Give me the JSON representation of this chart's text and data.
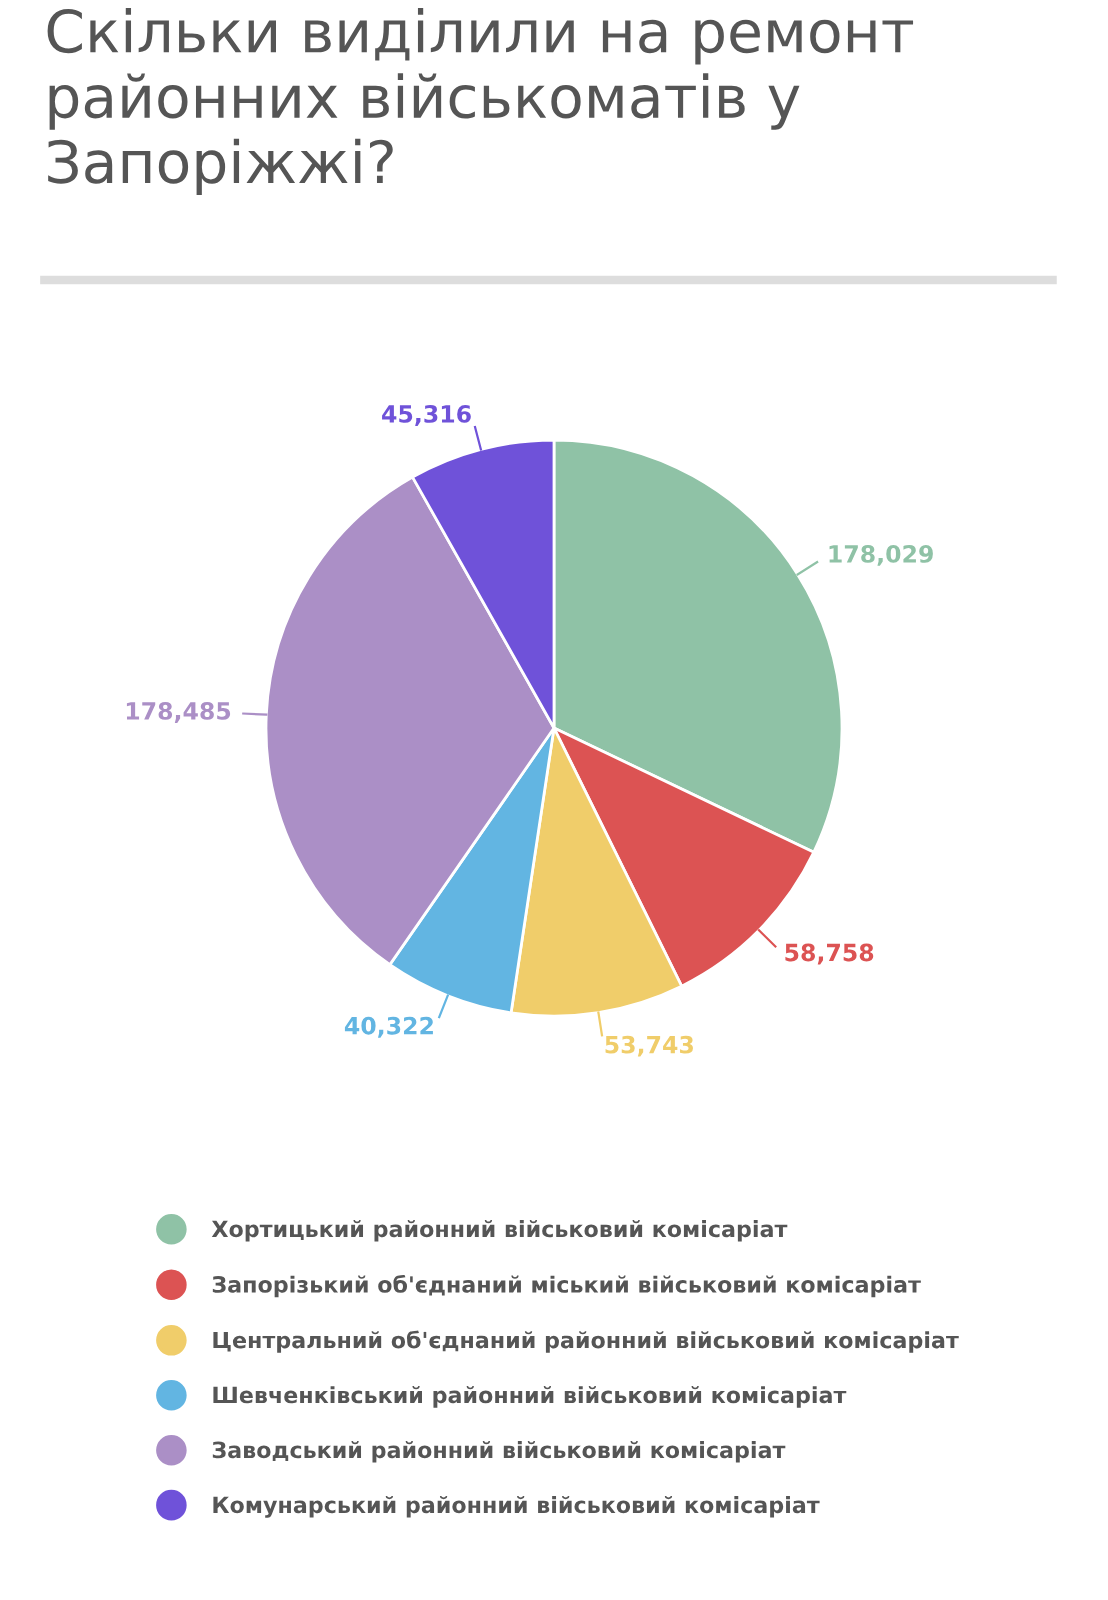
{
  "chart_data": {
    "type": "pie",
    "title": "Скільки виділили на ремонт районних військоматів у Запоріжжі?",
    "categories": [
      "Хортицький районний військовий комісаріат",
      "Запорізький об'єднаний міський військовий комісаріат",
      "Центральний об'єднаний районний військовий комісаріат",
      "Шевченківський районний військовий комісаріат",
      "Заводський районний військовий комісаріат",
      "Комунарський районний військовий комісаріат"
    ],
    "values": [
      178029,
      58758,
      53743,
      40322,
      178485,
      45316
    ],
    "value_labels": [
      "178,029",
      "58,758",
      "53,743",
      "40,322",
      "178,485",
      "45,316"
    ],
    "colors": [
      "#8fc2a6",
      "#dc5353",
      "#f0cd6a",
      "#62b5e2",
      "#ab8fc6",
      "#6f52d9"
    ],
    "legend": "bottom"
  }
}
